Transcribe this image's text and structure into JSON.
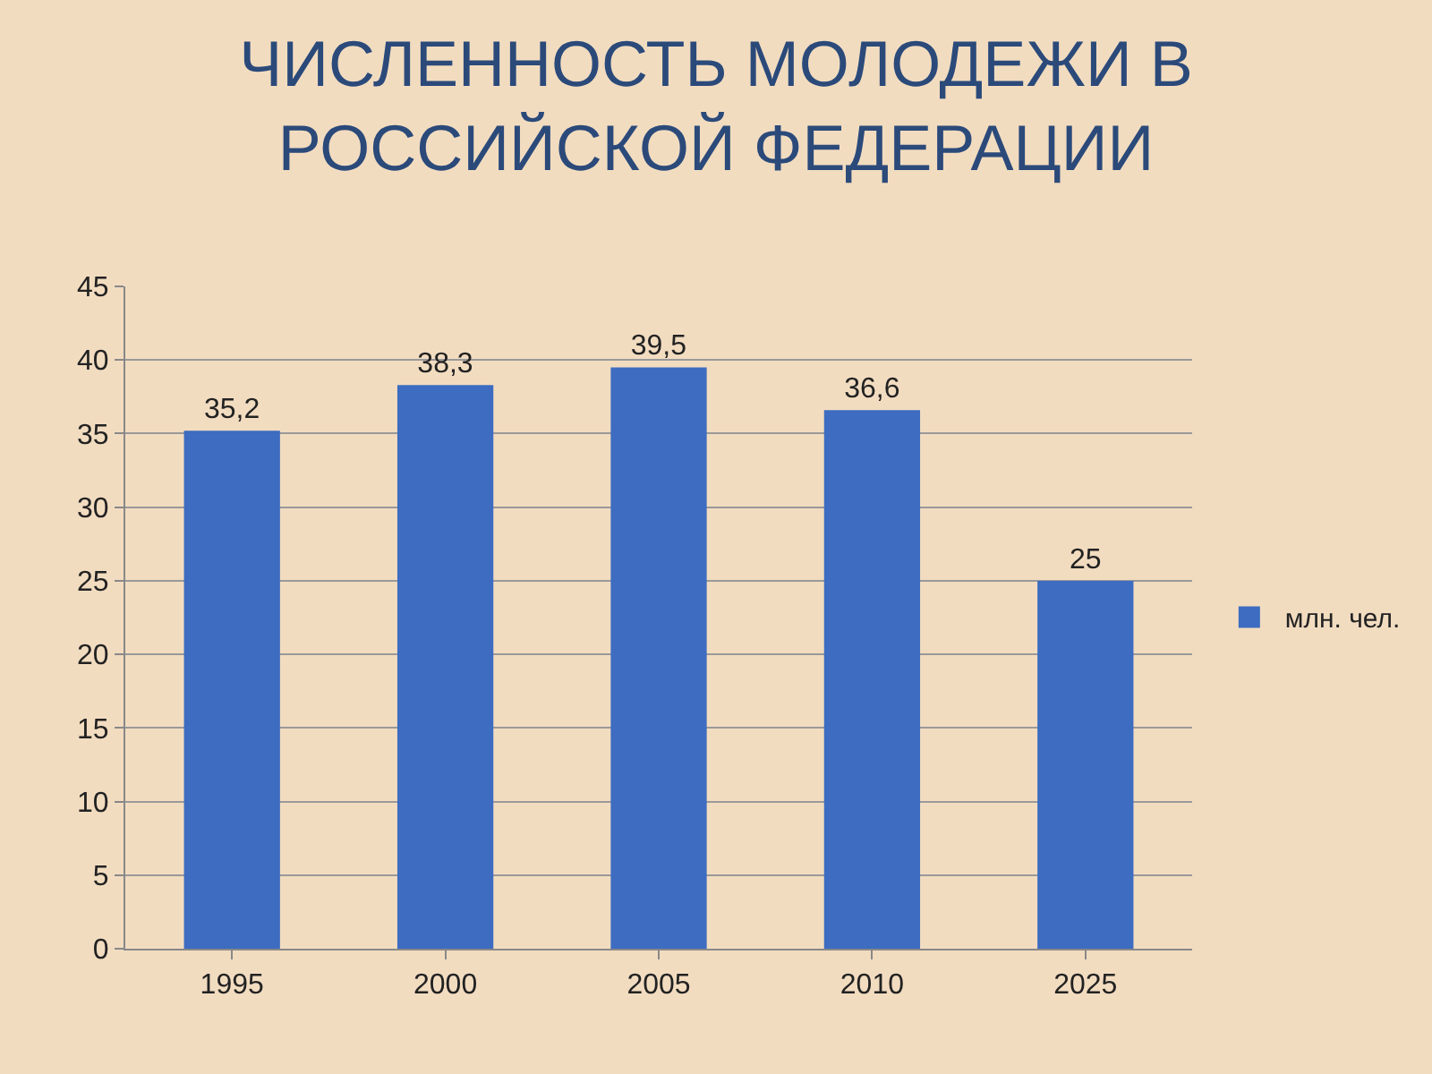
{
  "chart_data": {
    "type": "bar",
    "title": "ЧИСЛЕННОСТЬ МОЛОДЕЖИ В\nРОССИЙСКОЙ ФЕДЕРАЦИИ",
    "categories": [
      "1995",
      "2000",
      "2005",
      "2010",
      "2025"
    ],
    "series": [
      {
        "name": "млн. чел.",
        "color": "#3d6cc0",
        "values": [
          35.2,
          38.3,
          39.5,
          36.6,
          25
        ],
        "value_labels": [
          "35,2",
          "38,3",
          "39,5",
          "36,6",
          "25"
        ]
      }
    ],
    "ylim": [
      0,
      45
    ],
    "yticks": [
      0,
      5,
      10,
      15,
      20,
      25,
      30,
      35,
      40,
      45
    ],
    "grid": "y",
    "legend": "right"
  }
}
